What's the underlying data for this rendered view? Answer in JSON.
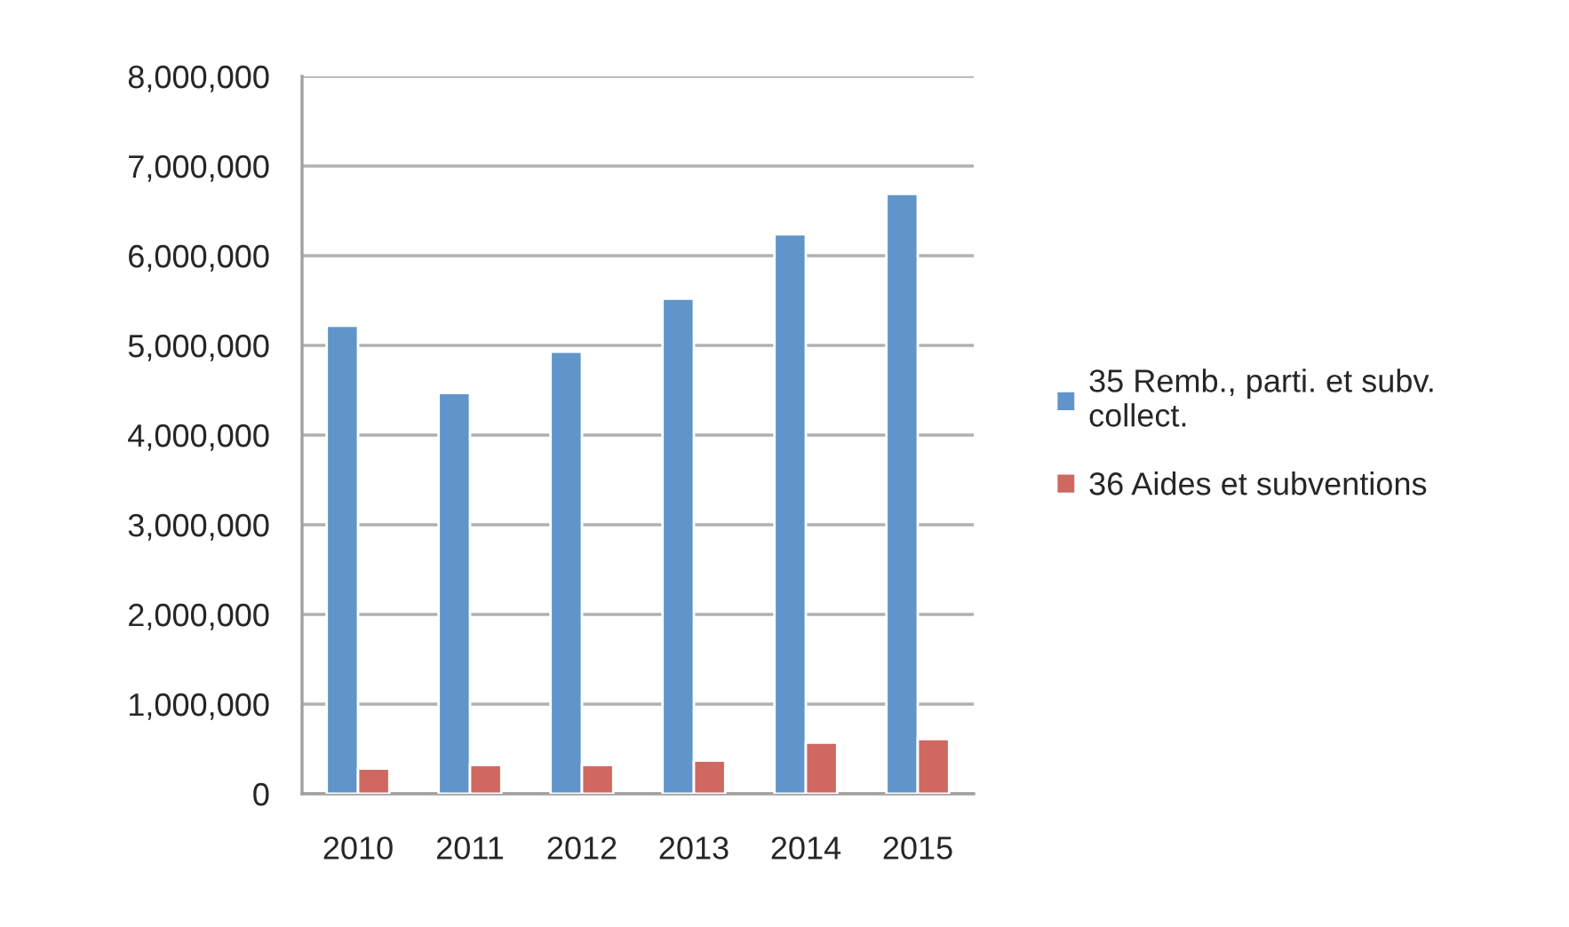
{
  "chart_data": {
    "type": "bar",
    "categories": [
      "2010",
      "2011",
      "2012",
      "2013",
      "2014",
      "2015"
    ],
    "series": [
      {
        "name": "35 Remb., parti. et subv.\ncollect.",
        "color": "#6195c9",
        "values": [
          5220000,
          4470000,
          4930000,
          5520000,
          6240000,
          6690000
        ]
      },
      {
        "name": "36 Aides et subventions",
        "color": "#cf6860",
        "values": [
          280000,
          320000,
          320000,
          370000,
          570000,
          610000
        ]
      }
    ],
    "ylim": [
      0,
      8000000
    ],
    "yticks": [
      {
        "value": 0,
        "label": "0"
      },
      {
        "value": 1000000,
        "label": "1,000,000"
      },
      {
        "value": 2000000,
        "label": "2,000,000"
      },
      {
        "value": 3000000,
        "label": "3,000,000"
      },
      {
        "value": 4000000,
        "label": "4,000,000"
      },
      {
        "value": 5000000,
        "label": "5,000,000"
      },
      {
        "value": 6000000,
        "label": "6,000,000"
      },
      {
        "value": 7000000,
        "label": "7,000,000"
      },
      {
        "value": 8000000,
        "label": "8,000,000"
      }
    ],
    "grid": "y",
    "legend": "right"
  }
}
